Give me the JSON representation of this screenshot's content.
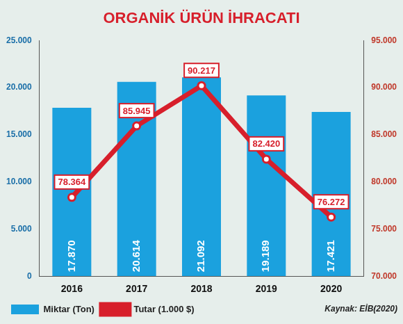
{
  "chart_data": {
    "type": "bar",
    "title": "ORGANİK ÜRÜN İHRACATI",
    "categories": [
      "2016",
      "2017",
      "2018",
      "2019",
      "2020"
    ],
    "series": [
      {
        "name": "Miktar (Ton)",
        "type": "bar",
        "color": "#1ba1de",
        "values": [
          17870,
          20614,
          21092,
          19189,
          17421
        ],
        "value_labels": [
          "17.870",
          "20.614",
          "21.092",
          "19.189",
          "17.421"
        ]
      },
      {
        "name": "Tutar (1.000 $)",
        "type": "line",
        "color": "#d71f2b",
        "axis": "y2",
        "marker": "circle",
        "values": [
          78364,
          85945,
          90217,
          82420,
          76272
        ],
        "value_labels": [
          "78.364",
          "85.945",
          "90.217",
          "82.420",
          "76.272"
        ]
      }
    ],
    "ylim": [
      0,
      25000
    ],
    "yticks": [
      0,
      {
        "value": 5000,
        "label": "5.000"
      },
      {
        "value": 10000,
        "label": "10.000"
      },
      {
        "value": 15000,
        "label": "15.000"
      },
      {
        "value": 20000,
        "label": "20.000"
      },
      {
        "value": 25000,
        "label": "25.000"
      }
    ],
    "y2lim": [
      70000,
      95000
    ],
    "y2ticks": [
      {
        "value": 70000,
        "label": "70.000"
      },
      {
        "value": 75000,
        "label": "75.000"
      },
      {
        "value": 80000,
        "label": "80.000"
      },
      {
        "value": 85000,
        "label": "85.000"
      },
      {
        "value": 90000,
        "label": "90.000"
      },
      {
        "value": 95000,
        "label": "95.000"
      }
    ],
    "data_labels": true,
    "grid": false,
    "legend": "bottom-left",
    "annotations": [
      "Kaynak: EİB(2020)"
    ]
  }
}
